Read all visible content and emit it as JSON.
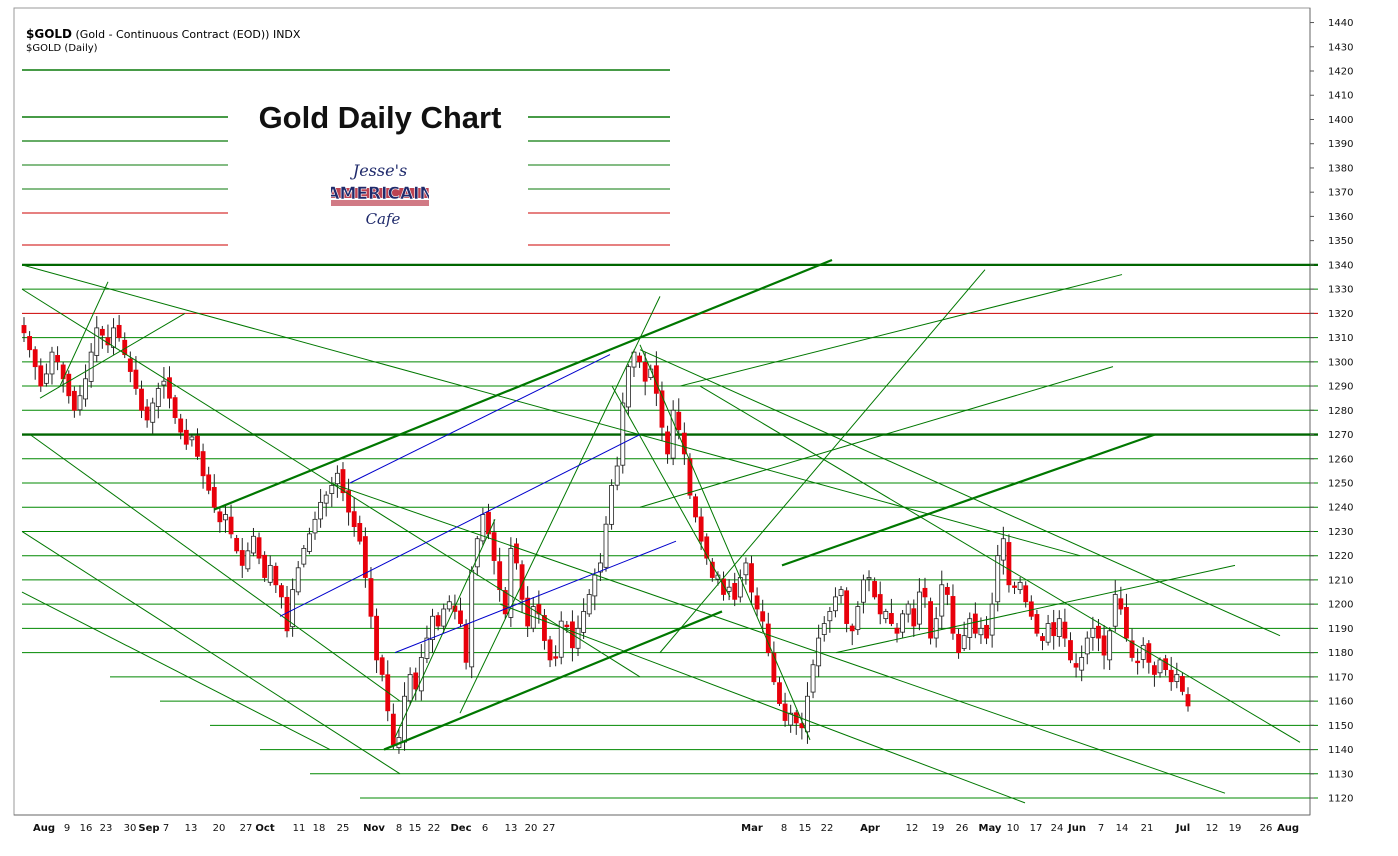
{
  "header": {
    "symbol": "$GOLD",
    "description": "(Gold - Continuous Contract (EOD)) INDX",
    "subtitle": "$GOLD (Daily)"
  },
  "annotation": {
    "title": "Gold Daily Chart",
    "logo_line1": "Jesse's",
    "logo_line2": "AMERICAIN",
    "logo_line3": "Cafe"
  },
  "colors": {
    "up_candle": "#ffffff",
    "down_candle": "#e8000b",
    "trendline": "#007700",
    "channel": "#0000cc",
    "resistance": "#cc0000",
    "grid": "#008800"
  },
  "chart_data": {
    "type": "candlestick",
    "y_axis": {
      "min": 1113,
      "max": 1446,
      "ticks": [
        1120,
        1130,
        1140,
        1150,
        1160,
        1170,
        1180,
        1190,
        1200,
        1210,
        1220,
        1230,
        1240,
        1250,
        1260,
        1270,
        1280,
        1290,
        1300,
        1310,
        1320,
        1330,
        1340,
        1350,
        1360,
        1370,
        1380,
        1390,
        1400,
        1410,
        1420,
        1430,
        1440
      ],
      "position": "right"
    },
    "x_axis": {
      "ticks": [
        {
          "label": "Aug",
          "month": true
        },
        {
          "label": "9"
        },
        {
          "label": "16"
        },
        {
          "label": "23"
        },
        {
          "label": "30"
        },
        {
          "label": "Sep",
          "month": true
        },
        {
          "label": "7"
        },
        {
          "label": "13"
        },
        {
          "label": "20"
        },
        {
          "label": "27"
        },
        {
          "label": "Oct",
          "month": true
        },
        {
          "label": "11"
        },
        {
          "label": "18"
        },
        {
          "label": "25"
        },
        {
          "label": "Nov",
          "month": true
        },
        {
          "label": "8"
        },
        {
          "label": "15"
        },
        {
          "label": "22"
        },
        {
          "label": "Dec",
          "month": true
        },
        {
          "label": "6"
        },
        {
          "label": "13"
        },
        {
          "label": "20"
        },
        {
          "label": "27"
        },
        {
          "label": "Mar",
          "month": true
        },
        {
          "label": "8"
        },
        {
          "label": "15"
        },
        {
          "label": "22"
        },
        {
          "label": "Apr",
          "month": true
        },
        {
          "label": "12"
        },
        {
          "label": "19"
        },
        {
          "label": "26"
        },
        {
          "label": "May",
          "month": true
        },
        {
          "label": "10"
        },
        {
          "label": "17"
        },
        {
          "label": "24"
        },
        {
          "label": "Jun",
          "month": true
        },
        {
          "label": "7"
        },
        {
          "label": "14"
        },
        {
          "label": "21"
        },
        {
          "label": "Jul",
          "month": true
        },
        {
          "label": "12"
        },
        {
          "label": "19"
        },
        {
          "label": "26"
        },
        {
          "label": "Aug",
          "month": true
        }
      ]
    },
    "horizontal_levels": [
      1120,
      1130,
      1140,
      1150,
      1160,
      1170,
      1180,
      1190,
      1200,
      1210,
      1220,
      1230,
      1240,
      1250,
      1260,
      1270,
      1280,
      1290,
      1300,
      1310,
      1320,
      1330,
      1340
    ],
    "key_levels": {
      "resistance": 1340,
      "pivot": 1270,
      "red_level": 1320
    },
    "closes": [
      1312,
      1305,
      1298,
      1290,
      1295,
      1304,
      1300,
      1293,
      1286,
      1280,
      1286,
      1293,
      1304,
      1314,
      1311,
      1307,
      1314,
      1310,
      1303,
      1296,
      1289,
      1280,
      1276,
      1283,
      1289,
      1292,
      1285,
      1277,
      1271,
      1266,
      1269,
      1261,
      1253,
      1247,
      1240,
      1234,
      1237,
      1229,
      1222,
      1216,
      1222,
      1228,
      1219,
      1211,
      1216,
      1208,
      1203,
      1189,
      1206,
      1215,
      1223,
      1229,
      1235,
      1242,
      1245,
      1249,
      1254,
      1246,
      1238,
      1232,
      1226,
      1211,
      1195,
      1177,
      1171,
      1156,
      1142,
      1145,
      1162,
      1171,
      1165,
      1178,
      1186,
      1195,
      1191,
      1198,
      1201,
      1197,
      1192,
      1176,
      1214,
      1227,
      1237,
      1229,
      1218,
      1206,
      1196,
      1223,
      1217,
      1202,
      1191,
      1199,
      1196,
      1185,
      1177,
      1178,
      1193,
      1191,
      1182,
      1190,
      1197,
      1204,
      1212,
      1217,
      1233,
      1249,
      1257,
      1283,
      1298,
      1304,
      1300,
      1292,
      1297,
      1287,
      1273,
      1262,
      1280,
      1272,
      1262,
      1245,
      1236,
      1226,
      1219,
      1211,
      1212,
      1204,
      1207,
      1202,
      1211,
      1217,
      1205,
      1198,
      1193,
      1180,
      1168,
      1159,
      1152,
      1155,
      1151,
      1149,
      1162,
      1175,
      1186,
      1192,
      1197,
      1203,
      1206,
      1192,
      1189,
      1199,
      1210,
      1211,
      1203,
      1196,
      1197,
      1192,
      1188,
      1196,
      1200,
      1191,
      1205,
      1203,
      1186,
      1194,
      1208,
      1204,
      1188,
      1180,
      1187,
      1194,
      1188,
      1190,
      1186,
      1200,
      1220,
      1227,
      1208,
      1207,
      1209,
      1201,
      1195,
      1188,
      1185,
      1192,
      1187,
      1194,
      1186,
      1177,
      1174,
      1178,
      1186,
      1190,
      1186,
      1179,
      1189,
      1204,
      1198,
      1186,
      1178,
      1176,
      1183,
      1176,
      1171,
      1177,
      1173,
      1168,
      1171,
      1164,
      1158
    ]
  }
}
